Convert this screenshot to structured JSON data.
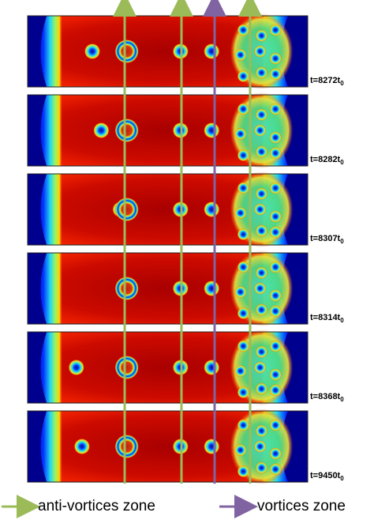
{
  "frames": [
    {
      "label_main": "t=8272t",
      "label_sub": "0",
      "antivortices": [
        {
          "pos": 0.231,
          "big": false
        },
        {
          "pos": 0.354,
          "big": true
        },
        {
          "pos": 0.546,
          "big": false
        },
        {
          "pos": 0.657,
          "big": false
        }
      ]
    },
    {
      "label_main": "t=8282t",
      "label_sub": "0",
      "antivortices": [
        {
          "pos": 0.263,
          "big": false
        },
        {
          "pos": 0.354,
          "big": true
        },
        {
          "pos": 0.546,
          "big": false
        },
        {
          "pos": 0.657,
          "big": false
        }
      ]
    },
    {
      "label_main": "t=8307t",
      "label_sub": "0",
      "antivortices": [
        {
          "pos": 0.331,
          "big": false
        },
        {
          "pos": 0.354,
          "big": true
        },
        {
          "pos": 0.546,
          "big": false
        },
        {
          "pos": 0.657,
          "big": false
        }
      ]
    },
    {
      "label_main": "t=8314t",
      "label_sub": "0",
      "antivortices": [
        {
          "pos": 0.354,
          "big": true
        },
        {
          "pos": 0.546,
          "big": false
        },
        {
          "pos": 0.657,
          "big": false
        }
      ]
    },
    {
      "label_main": "t=8368t",
      "label_sub": "0",
      "antivortices": [
        {
          "pos": 0.174,
          "big": false
        },
        {
          "pos": 0.354,
          "big": true
        },
        {
          "pos": 0.546,
          "big": false
        },
        {
          "pos": 0.657,
          "big": false
        }
      ]
    },
    {
      "label_main": "t=9450t",
      "label_sub": "0",
      "antivortices": [
        {
          "pos": 0.194,
          "big": false
        },
        {
          "pos": 0.354,
          "big": true
        },
        {
          "pos": 0.546,
          "big": false
        },
        {
          "pos": 0.657,
          "big": false
        }
      ]
    }
  ],
  "arrows": [
    {
      "kind": "anti-vortices",
      "color": "#9bbb59"
    },
    {
      "kind": "anti-vortices",
      "color": "#9bbb59"
    },
    {
      "kind": "vortices",
      "color": "#8064a2"
    },
    {
      "kind": "anti-vortices",
      "color": "#9bbb59"
    }
  ],
  "legend": {
    "antivortex_label": "anti-vortices zone",
    "vortex_label": "vortices zone",
    "antivortex_color": "#9bbb59",
    "vortex_color": "#8064a2"
  },
  "colors": {
    "background_field": "#c8000a",
    "edge_blue": "#00008f",
    "core_blue": "#1020c8",
    "ring_cyan": "#22d8f0",
    "green_band": "#4cd27a"
  }
}
